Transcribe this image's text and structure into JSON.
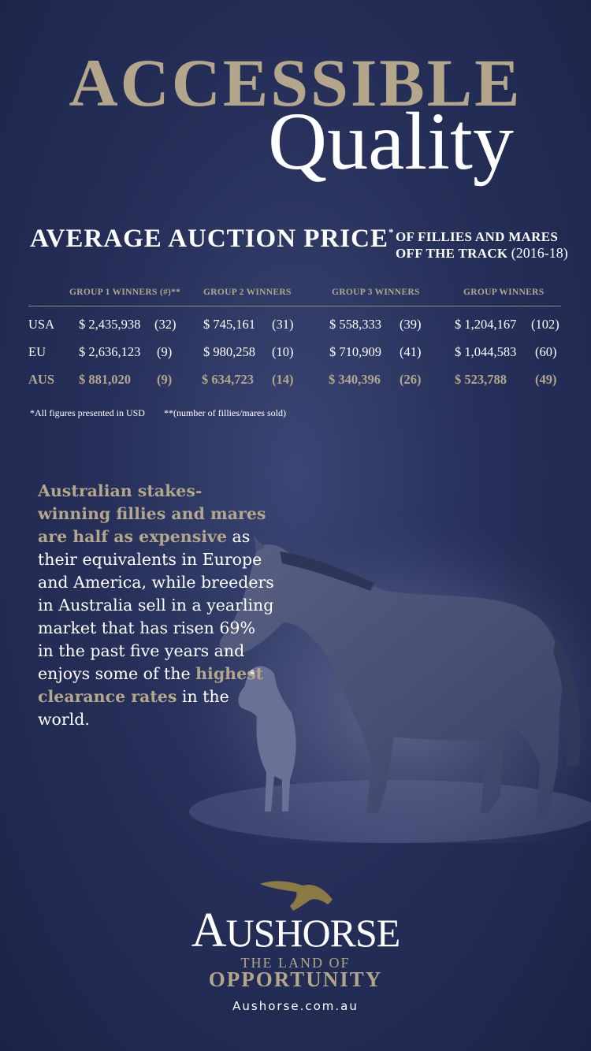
{
  "header": {
    "title_line1": "ACCESSIBLE",
    "title_line2": "Quality",
    "subtitle_main": "AVERAGE AUCTION PRICE",
    "subtitle_mark": "*",
    "subtitle_side_line1": "OF FILLIES AND MARES",
    "subtitle_side_line2": "OFF THE TRACK",
    "subtitle_years": "(2016-18)"
  },
  "table": {
    "headers": [
      "GROUP 1 WINNERS (#)**",
      "GROUP 2 WINNERS",
      "GROUP 3 WINNERS",
      "GROUP WINNERS"
    ],
    "rows": [
      {
        "region": "USA",
        "values": [
          {
            "price": "$ 2,435,938",
            "count": "(32)"
          },
          {
            "price": "$ 745,161",
            "count": "(31)"
          },
          {
            "price": "$ 558,333",
            "count": "(39)"
          },
          {
            "price": "$ 1,204,167",
            "count": "(102)"
          }
        ]
      },
      {
        "region": "EU",
        "values": [
          {
            "price": "$ 2,636,123",
            "count": "(9)"
          },
          {
            "price": "$ 980,258",
            "count": "(10)"
          },
          {
            "price": "$ 710,909",
            "count": "(41)"
          },
          {
            "price": "$ 1,044,583",
            "count": "(60)"
          }
        ]
      },
      {
        "region": "AUS",
        "values": [
          {
            "price": "$ 881,020",
            "count": "(9)"
          },
          {
            "price": "$ 634,723",
            "count": "(14)"
          },
          {
            "price": "$ 340,396",
            "count": "(26)"
          },
          {
            "price": "$ 523,788",
            "count": "(49)"
          }
        ]
      }
    ],
    "footnote_usd": "*All figures presented in USD",
    "footnote_count": "**(number of fillies/mares sold)"
  },
  "body": {
    "highlight1": "Australian stakes-winning fillies and mares are half as expensive",
    "text1": " as their equivalents in Europe and America, while breeders in Australia sell in a yearling market that has risen 69% in the past five years and enjoys some of the ",
    "highlight2": "highest clearance rates",
    "text2": " in the world."
  },
  "brand": {
    "name_cap": "A",
    "name_rest": "USHORSE",
    "tagline_line1": "THE LAND OF",
    "tagline_line2": "OPPORTUNITY",
    "website": "Aushorse.com.au"
  },
  "colors": {
    "accent_gold": "#b3a68a",
    "background": "#26305a"
  }
}
